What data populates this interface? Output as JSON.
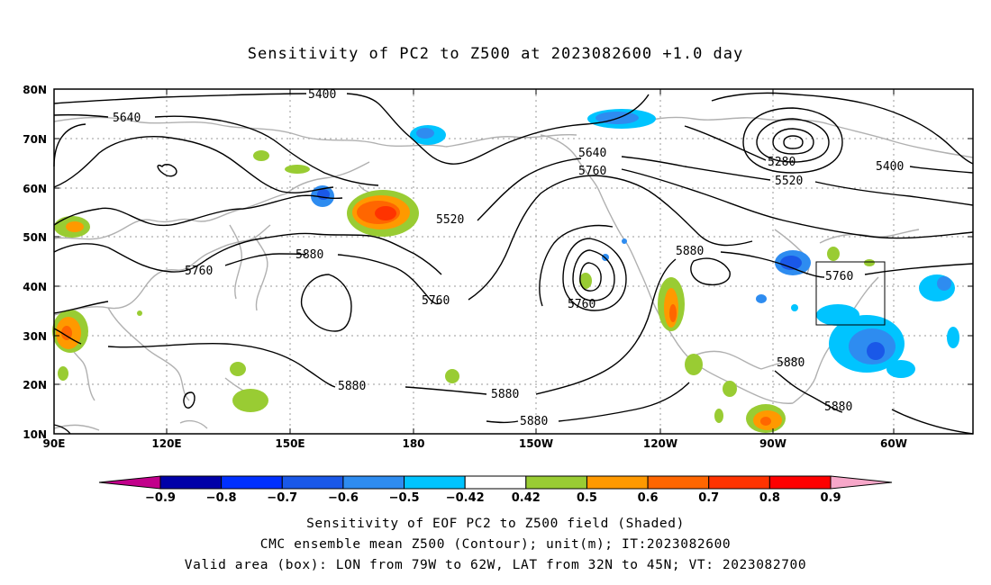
{
  "title": "Sensitivity of PC2 to Z500 at 2023082600 +1.0 day",
  "map": {
    "lat_ticks": [
      "80N",
      "70N",
      "60N",
      "50N",
      "40N",
      "30N",
      "20N",
      "10N"
    ],
    "lon_ticks": [
      "90E",
      "120E",
      "150E",
      "180",
      "150W",
      "120W",
      "90W",
      "60W"
    ],
    "contour_labels": [
      "5400",
      "5640",
      "5280",
      "5400",
      "5520",
      "5640",
      "5760",
      "5520",
      "5880",
      "5760",
      "5760",
      "5880",
      "5760",
      "5760",
      "5880",
      "5880",
      "5880",
      "5880",
      "5880"
    ],
    "valid_box": {
      "lon_min": -79,
      "lon_max": -62,
      "lat_min": 32,
      "lat_max": 45
    }
  },
  "colorbar": {
    "labels": [
      "-0.9",
      "-0.8",
      "-0.7",
      "-0.6",
      "-0.5",
      "-0.42",
      "0.42",
      "0.5",
      "0.6",
      "0.7",
      "0.8",
      "0.9"
    ],
    "colors": [
      "#c2008b",
      "#0000a8",
      "#0030ff",
      "#1a58e8",
      "#2e8cf0",
      "#00c4ff",
      "#ffffff",
      "#99cc33",
      "#ff9900",
      "#ff6600",
      "#ff3300",
      "#ff0000",
      "#f7a7c9"
    ]
  },
  "captions": {
    "line1": "Sensitivity of EOF PC2 to Z500 field (Shaded)",
    "line2": "CMC ensemble mean Z500 (Contour); unit(m); IT:2023082600",
    "line3": "Valid area (box): LON from 79W to 62W, LAT from 32N to 45N; VT: 2023082700"
  }
}
